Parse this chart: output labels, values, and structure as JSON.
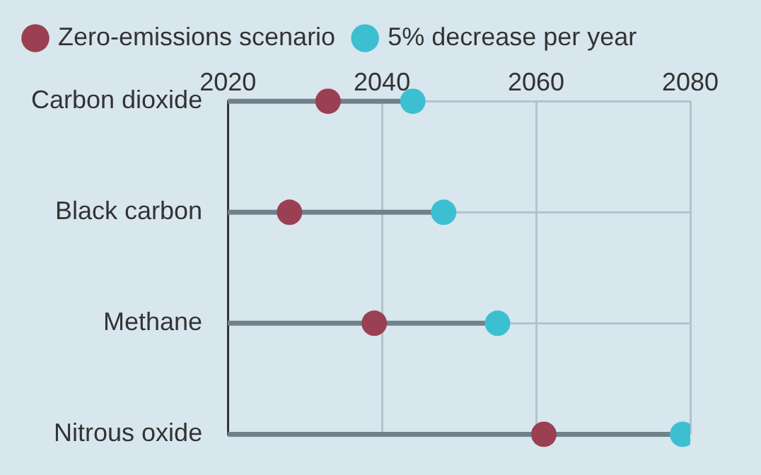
{
  "chart_data": {
    "type": "lollipop",
    "orientation": "horizontal",
    "categories": [
      "Carbon dioxide",
      "Black carbon",
      "Methane",
      "Nitrous oxide"
    ],
    "series": [
      {
        "name": "Zero-emissions scenario",
        "color": "#9b3f52",
        "values": [
          2033,
          2028,
          2039,
          2061
        ]
      },
      {
        "name": "5% decrease per year",
        "color": "#3dbfd2",
        "values": [
          2044,
          2048,
          2055,
          2079
        ]
      }
    ],
    "xlim": [
      2020,
      2080
    ],
    "xticks": [
      2020,
      2040,
      2060,
      2080
    ],
    "grid": true,
    "legend": "top left",
    "marker": "circle"
  }
}
